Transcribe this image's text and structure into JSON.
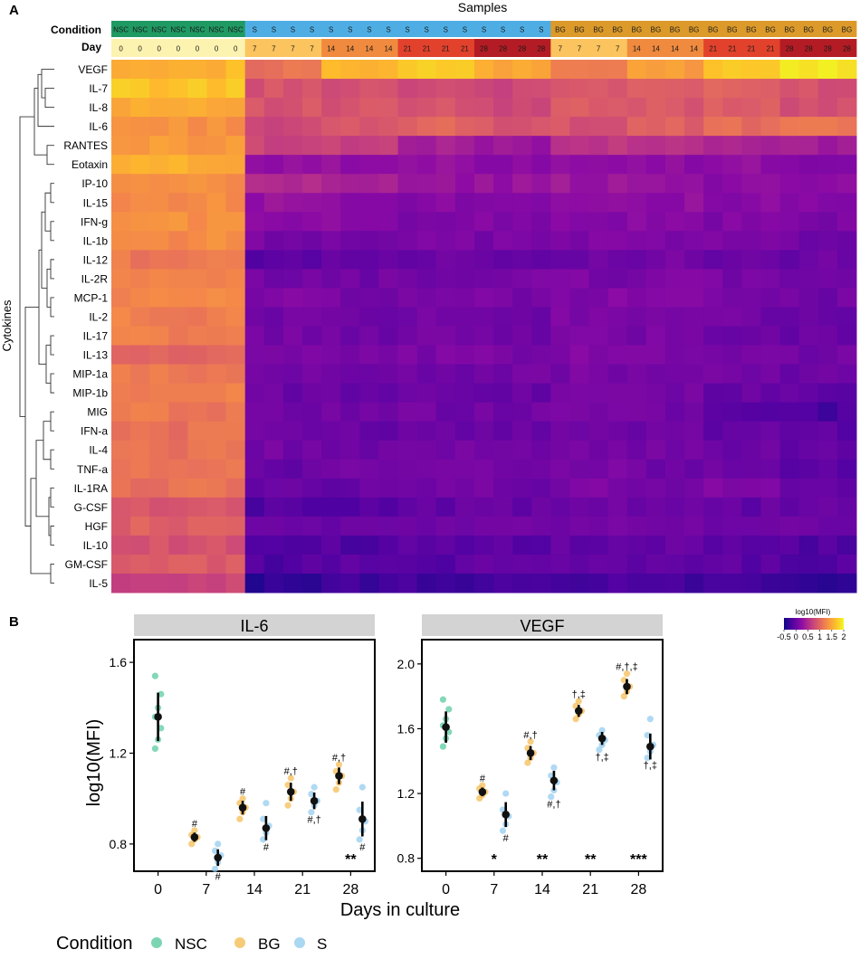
{
  "panel_a": {
    "label": "A",
    "samples_title": "Samples",
    "condition_label": "Condition",
    "day_label": "Day",
    "cytokines_label": "Cytokines",
    "conditions": [
      "NSC",
      "NSC",
      "NSC",
      "NSC",
      "NSC",
      "NSC",
      "NSC",
      "S",
      "S",
      "S",
      "S",
      "S",
      "S",
      "S",
      "S",
      "S",
      "S",
      "S",
      "S",
      "S",
      "S",
      "S",
      "S",
      "BG",
      "BG",
      "BG",
      "BG",
      "BG",
      "BG",
      "BG",
      "BG",
      "BG",
      "BG",
      "BG",
      "BG",
      "BG",
      "BG",
      "BG",
      "BG"
    ],
    "days": [
      "0",
      "0",
      "0",
      "0",
      "0",
      "0",
      "0",
      "7",
      "7",
      "7",
      "7",
      "14",
      "14",
      "14",
      "14",
      "21",
      "21",
      "21",
      "21",
      "28",
      "28",
      "28",
      "28",
      "7",
      "7",
      "7",
      "7",
      "14",
      "14",
      "14",
      "14",
      "21",
      "21",
      "21",
      "21",
      "28",
      "28",
      "28",
      "28"
    ],
    "condition_colors": {
      "NSC": "#1f9a63",
      "S": "#4eaee4",
      "BG": "#dc9a2a"
    },
    "day_colors": {
      "0": "#fdf3b0",
      "7": "#fbc45e",
      "14": "#f08a3e",
      "21": "#e2422c",
      "28": "#b31c24"
    },
    "colorbar": {
      "title": "log10(MFI)",
      "ticks": [
        "-0.5",
        "0",
        "0.5",
        "1",
        "1.5",
        "2"
      ]
    }
  },
  "panel_b": {
    "label": "B",
    "ylabel": "log10(MFI)",
    "xlabel": "Days in culture",
    "legend_title": "Condition",
    "legend": [
      {
        "name": "NSC",
        "color": "#4fc79a"
      },
      {
        "name": "BG",
        "color": "#f3b94a"
      },
      {
        "name": "S",
        "color": "#8ec9ee"
      }
    ]
  },
  "chart_data": [
    {
      "type": "heatmap",
      "title": "Samples",
      "xlabel": "Samples",
      "ylabel": "Cytokines",
      "rows": [
        "VEGF",
        "IL-7",
        "IL-8",
        "IL-6",
        "RANTES",
        "Eotaxin",
        "IP-10",
        "IL-15",
        "IFN-g",
        "IL-1b",
        "IL-12",
        "IL-2R",
        "MCP-1",
        "IL-2",
        "IL-17",
        "IL-13",
        "MIP-1a",
        "MIP-1b",
        "MIG",
        "IFN-a",
        "IL-4",
        "TNF-a",
        "IL-1RA",
        "G-CSF",
        "HGF",
        "IL-10",
        "GM-CSF",
        "IL-5"
      ],
      "group_values": {
        "columns": [
          "NSC-0",
          "S-7",
          "S-14",
          "S-21",
          "S-28",
          "BG-7",
          "BG-14",
          "BG-21",
          "BG-28"
        ],
        "values": [
          [
            1.6,
            1.1,
            1.6,
            1.7,
            1.5,
            1.2,
            1.4,
            1.7,
            1.9
          ],
          [
            1.7,
            0.85,
            0.85,
            0.8,
            0.75,
            0.9,
            0.95,
            0.95,
            0.85
          ],
          [
            1.55,
            0.85,
            0.85,
            0.85,
            0.75,
            0.9,
            0.9,
            0.95,
            0.85
          ],
          [
            1.35,
            0.75,
            0.85,
            1.0,
            0.9,
            0.85,
            0.95,
            1.05,
            1.1
          ],
          [
            1.4,
            0.75,
            0.7,
            0.4,
            0.35,
            0.6,
            0.55,
            0.45,
            0.4
          ],
          [
            1.55,
            0.3,
            0.25,
            0.25,
            0.25,
            0.3,
            0.25,
            0.25,
            0.2
          ],
          [
            1.3,
            0.5,
            0.45,
            0.3,
            0.3,
            0.35,
            0.3,
            0.25,
            0.2
          ],
          [
            1.3,
            0.3,
            0.25,
            0.2,
            0.2,
            0.3,
            0.25,
            0.2,
            0.15
          ],
          [
            1.35,
            0.2,
            0.2,
            0.15,
            0.15,
            0.2,
            0.2,
            0.15,
            0.1
          ],
          [
            1.3,
            0.1,
            0.1,
            0.1,
            0.1,
            0.15,
            0.15,
            0.1,
            0.05
          ],
          [
            1.15,
            -0.1,
            0.0,
            0.0,
            0.0,
            0.05,
            0.05,
            0.0,
            0.0
          ],
          [
            1.2,
            0.05,
            0.05,
            0.05,
            0.1,
            0.1,
            0.15,
            0.1,
            0.05
          ],
          [
            1.25,
            0.15,
            0.1,
            0.1,
            0.1,
            0.15,
            0.15,
            0.1,
            0.05
          ],
          [
            1.2,
            0.05,
            0.05,
            0.05,
            0.05,
            0.1,
            0.1,
            0.05,
            0.0
          ],
          [
            1.2,
            0.05,
            0.05,
            0.05,
            0.05,
            0.1,
            0.1,
            0.05,
            0.0
          ],
          [
            1.0,
            0.1,
            0.05,
            0.1,
            0.1,
            0.15,
            0.15,
            0.1,
            0.05
          ],
          [
            1.15,
            0.05,
            0.05,
            0.05,
            0.05,
            0.1,
            0.1,
            0.05,
            0.0
          ],
          [
            1.2,
            0.0,
            0.0,
            0.0,
            0.0,
            0.05,
            0.05,
            0.0,
            -0.05
          ],
          [
            1.15,
            0.05,
            0.05,
            0.05,
            0.05,
            0.1,
            0.05,
            -0.15,
            -0.2
          ],
          [
            1.1,
            0.0,
            0.0,
            0.0,
            0.0,
            0.05,
            0.05,
            -0.05,
            -0.1
          ],
          [
            1.1,
            0.05,
            0.05,
            0.05,
            0.05,
            0.1,
            0.05,
            0.0,
            -0.05
          ],
          [
            1.1,
            0.0,
            0.05,
            0.05,
            0.05,
            0.1,
            0.05,
            0.0,
            -0.1
          ],
          [
            1.1,
            0.0,
            0.0,
            0.05,
            0.05,
            0.1,
            0.1,
            0.15,
            0.0
          ],
          [
            0.9,
            -0.15,
            -0.1,
            -0.05,
            -0.05,
            0.0,
            0.0,
            -0.05,
            -0.05
          ],
          [
            0.95,
            0.0,
            0.0,
            0.05,
            0.05,
            0.05,
            0.05,
            0.05,
            0.0
          ],
          [
            0.85,
            -0.2,
            -0.15,
            -0.1,
            -0.1,
            -0.05,
            -0.05,
            -0.1,
            -0.15
          ],
          [
            0.9,
            -0.15,
            -0.1,
            -0.1,
            -0.05,
            -0.05,
            -0.05,
            -0.1,
            -0.15
          ],
          [
            0.75,
            -0.35,
            -0.25,
            -0.25,
            -0.25,
            -0.2,
            -0.2,
            -0.25,
            -0.3
          ]
        ]
      },
      "colorbar": {
        "label": "log10(MFI)",
        "range": [
          -0.5,
          2.0
        ]
      }
    },
    {
      "type": "scatter",
      "title": "IL-6",
      "xlabel": "Days in culture",
      "ylabel": "log10(MFI)",
      "x_ticks": [
        "0",
        "7",
        "14",
        "21",
        "28"
      ],
      "ylim": [
        0.68,
        1.7
      ],
      "y_ticks": [
        "0.8",
        "1.2",
        "1.6"
      ],
      "series": [
        {
          "name": "NSC",
          "points": [
            [
              0,
              1.36,
              [
                1.22,
                1.26,
                1.31,
                1.36,
                1.4,
                1.46,
                1.54
              ]
            ]
          ]
        },
        {
          "name": "BG",
          "points": [
            [
              7,
              0.83,
              [
                0.8,
                0.82,
                0.83,
                0.84,
                0.86
              ]
            ],
            [
              14,
              0.96,
              [
                0.91,
                0.94,
                0.96,
                0.98,
                1.0
              ]
            ],
            [
              21,
              1.03,
              [
                0.97,
                1.0,
                1.03,
                1.06,
                1.09
              ]
            ],
            [
              28,
              1.1,
              [
                1.04,
                1.07,
                1.1,
                1.12,
                1.15
              ]
            ]
          ]
        },
        {
          "name": "S",
          "points": [
            [
              7,
              0.74,
              [
                0.69,
                0.72,
                0.75,
                0.77,
                0.8
              ]
            ],
            [
              14,
              0.87,
              [
                0.82,
                0.85,
                0.88,
                0.91,
                0.98
              ]
            ],
            [
              21,
              0.99,
              [
                0.94,
                0.97,
                0.99,
                1.02,
                1.05
              ]
            ],
            [
              28,
              0.91,
              [
                0.82,
                0.86,
                0.9,
                0.95,
                1.05
              ]
            ]
          ]
        }
      ],
      "annotations": [
        {
          "x": 7,
          "series": "BG",
          "text": "#",
          "pos": "above"
        },
        {
          "x": 7,
          "series": "S",
          "text": "#",
          "pos": "below"
        },
        {
          "x": 14,
          "series": "BG",
          "text": "#",
          "pos": "above"
        },
        {
          "x": 14,
          "series": "S",
          "text": "#",
          "pos": "below"
        },
        {
          "x": 21,
          "series": "BG",
          "text": "#,†",
          "pos": "above"
        },
        {
          "x": 21,
          "series": "S",
          "text": "#,†",
          "pos": "below"
        },
        {
          "x": 28,
          "series": "BG",
          "text": "#,†",
          "pos": "above"
        },
        {
          "x": 28,
          "series": "S",
          "text": "#",
          "pos": "below"
        },
        {
          "x": 28,
          "series": "bottom",
          "text": "**",
          "pos": "bottom"
        }
      ]
    },
    {
      "type": "scatter",
      "title": "VEGF",
      "xlabel": "Days in culture",
      "ylabel": "log10(MFI)",
      "x_ticks": [
        "0",
        "7",
        "14",
        "21",
        "28"
      ],
      "ylim": [
        0.72,
        2.15
      ],
      "y_ticks": [
        "0.8",
        "1.2",
        "1.6",
        "2.0"
      ],
      "series": [
        {
          "name": "NSC",
          "points": [
            [
              0,
              1.61,
              [
                1.49,
                1.54,
                1.58,
                1.62,
                1.66,
                1.72,
                1.78
              ]
            ]
          ]
        },
        {
          "name": "BG",
          "points": [
            [
              7,
              1.21,
              [
                1.17,
                1.19,
                1.21,
                1.23,
                1.25
              ]
            ],
            [
              14,
              1.45,
              [
                1.39,
                1.42,
                1.45,
                1.48,
                1.52
              ]
            ],
            [
              21,
              1.71,
              [
                1.66,
                1.69,
                1.71,
                1.74,
                1.77
              ]
            ],
            [
              28,
              1.86,
              [
                1.8,
                1.83,
                1.86,
                1.9,
                1.94
              ]
            ]
          ]
        },
        {
          "name": "S",
          "points": [
            [
              7,
              1.07,
              [
                0.97,
                1.01,
                1.06,
                1.1,
                1.2
              ]
            ],
            [
              14,
              1.28,
              [
                1.18,
                1.22,
                1.27,
                1.31,
                1.36
              ]
            ],
            [
              21,
              1.54,
              [
                1.47,
                1.5,
                1.53,
                1.56,
                1.59
              ]
            ],
            [
              28,
              1.49,
              [
                1.42,
                1.46,
                1.5,
                1.56,
                1.66
              ]
            ]
          ]
        }
      ],
      "annotations": [
        {
          "x": 7,
          "series": "BG",
          "text": "#",
          "pos": "above"
        },
        {
          "x": 7,
          "series": "S",
          "text": "#",
          "pos": "below"
        },
        {
          "x": 14,
          "series": "BG",
          "text": "#,†",
          "pos": "above"
        },
        {
          "x": 14,
          "series": "S",
          "text": "#,†",
          "pos": "below"
        },
        {
          "x": 21,
          "series": "BG",
          "text": "†,‡",
          "pos": "above"
        },
        {
          "x": 21,
          "series": "S",
          "text": "†,‡",
          "pos": "below"
        },
        {
          "x": 28,
          "series": "BG",
          "text": "#,†,‡",
          "pos": "above"
        },
        {
          "x": 28,
          "series": "S",
          "text": "†,‡",
          "pos": "below"
        },
        {
          "x": 7,
          "series": "bottom",
          "text": "*",
          "pos": "bottom"
        },
        {
          "x": 14,
          "series": "bottom",
          "text": "**",
          "pos": "bottom"
        },
        {
          "x": 21,
          "series": "bottom",
          "text": "**",
          "pos": "bottom"
        },
        {
          "x": 28,
          "series": "bottom",
          "text": "***",
          "pos": "bottom"
        }
      ]
    }
  ]
}
